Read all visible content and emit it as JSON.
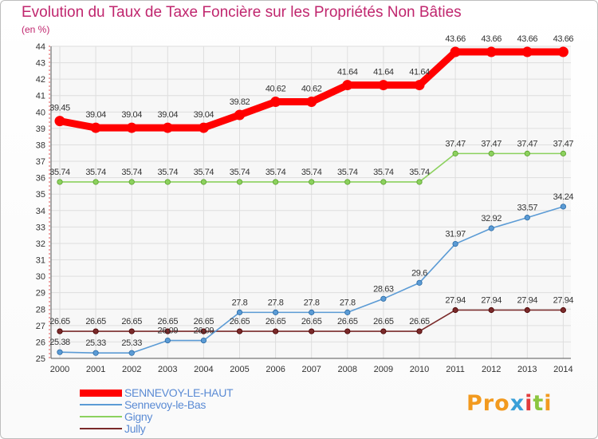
{
  "chart_data": {
    "type": "line",
    "title": "Evolution du Taux de Taxe Foncière sur les Propriétés Non Bâties",
    "ylabel": "(en %)",
    "xlabel": "",
    "ylim": [
      25,
      44
    ],
    "yticks": [
      "25",
      "26",
      "27",
      "28",
      "29",
      "30",
      "31",
      "32",
      "33",
      "34",
      "35",
      "36",
      "37",
      "38",
      "39",
      "40",
      "41",
      "42",
      "43",
      "44"
    ],
    "categories": [
      "2000",
      "2001",
      "2002",
      "2003",
      "2004",
      "2005",
      "2006",
      "2007",
      "2008",
      "2009",
      "2010",
      "2011",
      "2012",
      "2013",
      "2014"
    ],
    "series": [
      {
        "name": "SENNEVOY-LE-HAUT",
        "color": "#ff0000",
        "values": [
          39.45,
          39.04,
          39.04,
          39.04,
          39.04,
          39.82,
          40.62,
          40.62,
          41.64,
          41.64,
          41.64,
          43.66,
          43.66,
          43.66,
          43.66
        ],
        "labels": [
          "39.45",
          "39.04",
          "39.04",
          "39.04",
          "39.04",
          "39.82",
          "40.62",
          "40.62",
          "41.64",
          "41.64",
          "41.64",
          "43.66",
          "43.66",
          "43.66",
          "43.66"
        ]
      },
      {
        "name": "Sennevoy-le-Bas",
        "color": "#5b9bd5",
        "values": [
          25.38,
          25.33,
          25.33,
          26.09,
          26.09,
          27.8,
          27.8,
          27.8,
          27.8,
          28.63,
          29.6,
          31.97,
          32.92,
          33.57,
          34.24
        ],
        "labels": [
          "25.38",
          "25.33",
          "25.33",
          "26.09",
          "26.09",
          "27.8",
          "27.8",
          "27.8",
          "27.8",
          "28.63",
          "29.6",
          "31.97",
          "32.92",
          "33.57",
          "34.24"
        ]
      },
      {
        "name": "Gigny",
        "color": "#8cd15e",
        "values": [
          35.74,
          35.74,
          35.74,
          35.74,
          35.74,
          35.74,
          35.74,
          35.74,
          35.74,
          35.74,
          35.74,
          37.47,
          37.47,
          37.47,
          37.47
        ],
        "labels": [
          "35.74",
          "35.74",
          "35.74",
          "35.74",
          "35.74",
          "35.74",
          "35.74",
          "35.74",
          "35.74",
          "35.74",
          "35.74",
          "37.47",
          "37.47",
          "37.47",
          "37.47"
        ]
      },
      {
        "name": "Jully",
        "color": "#7a2a2a",
        "values": [
          26.65,
          26.65,
          26.65,
          26.65,
          26.65,
          26.65,
          26.65,
          26.65,
          26.65,
          26.65,
          26.65,
          27.94,
          27.94,
          27.94,
          27.94
        ],
        "labels": [
          "26.65",
          "26.65",
          "26.65",
          "26.65",
          "26.65",
          "26.65",
          "26.65",
          "26.65",
          "26.65",
          "26.65",
          "26.65",
          "27.94",
          "27.94",
          "27.94",
          "27.94"
        ]
      }
    ],
    "legend_position": "bottom-left"
  },
  "logo": {
    "text": "Proxiti",
    "letter_colors": [
      "#f29a1f",
      "#f29a1f",
      "#f29a1f",
      "#3aa0d8",
      "#e23c3c",
      "#8cc63f",
      "#f29a1f"
    ]
  }
}
